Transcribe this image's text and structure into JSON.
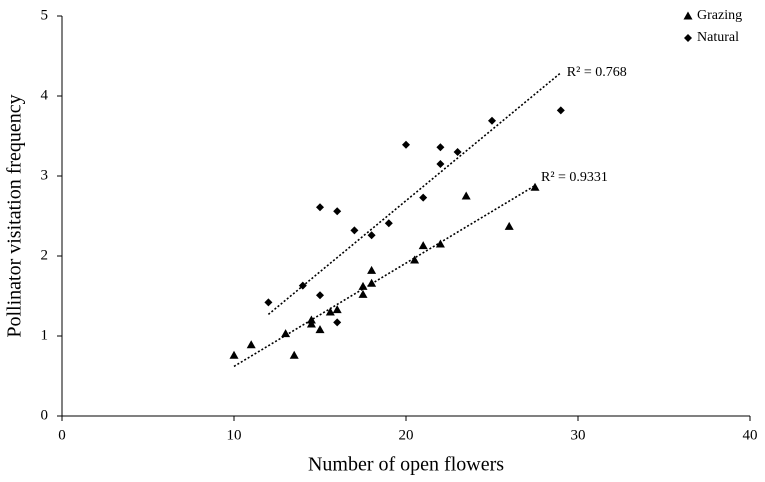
{
  "chart_data": {
    "type": "scatter",
    "xlabel": "Number of open flowers",
    "ylabel": "Pollinator visitation frequency",
    "xlim": [
      0,
      40
    ],
    "xticks": [
      0,
      10,
      20,
      30,
      40
    ],
    "ylim": [
      0,
      5
    ],
    "yticks": [
      0,
      1,
      2,
      3,
      4,
      5
    ],
    "series": [
      {
        "name": "Grazing",
        "marker": "triangle",
        "color": "#000000",
        "x": [
          10,
          11,
          13.5,
          13,
          14.5,
          14.5,
          15,
          15.6,
          16,
          17.5,
          17.5,
          18,
          18,
          20.5,
          21,
          22,
          23.5,
          26,
          27.5
        ],
        "values": [
          0.76,
          0.89,
          0.76,
          1.03,
          1.2,
          1.15,
          1.08,
          1.3,
          1.33,
          1.52,
          1.62,
          1.82,
          1.66,
          1.95,
          2.13,
          2.15,
          2.75,
          2.37,
          2.86
        ],
        "trendline": {
          "x": [
            10,
            27.5
          ],
          "values": [
            0.62,
            2.88
          ]
        },
        "r2_label": "R² = 0.9331"
      },
      {
        "name": "Natural",
        "marker": "diamond",
        "color": "#000000",
        "x": [
          12,
          14,
          15,
          15,
          16,
          16,
          17,
          18,
          19,
          20,
          21,
          22,
          22,
          23,
          25,
          29
        ],
        "values": [
          1.42,
          1.63,
          2.61,
          1.51,
          2.56,
          1.17,
          2.32,
          2.26,
          2.41,
          3.39,
          2.73,
          3.36,
          3.15,
          3.3,
          3.69,
          3.82
        ],
        "trendline": {
          "x": [
            12,
            29
          ],
          "values": [
            1.27,
            4.29
          ]
        },
        "r2_label": "R² = 0.768"
      }
    ]
  }
}
